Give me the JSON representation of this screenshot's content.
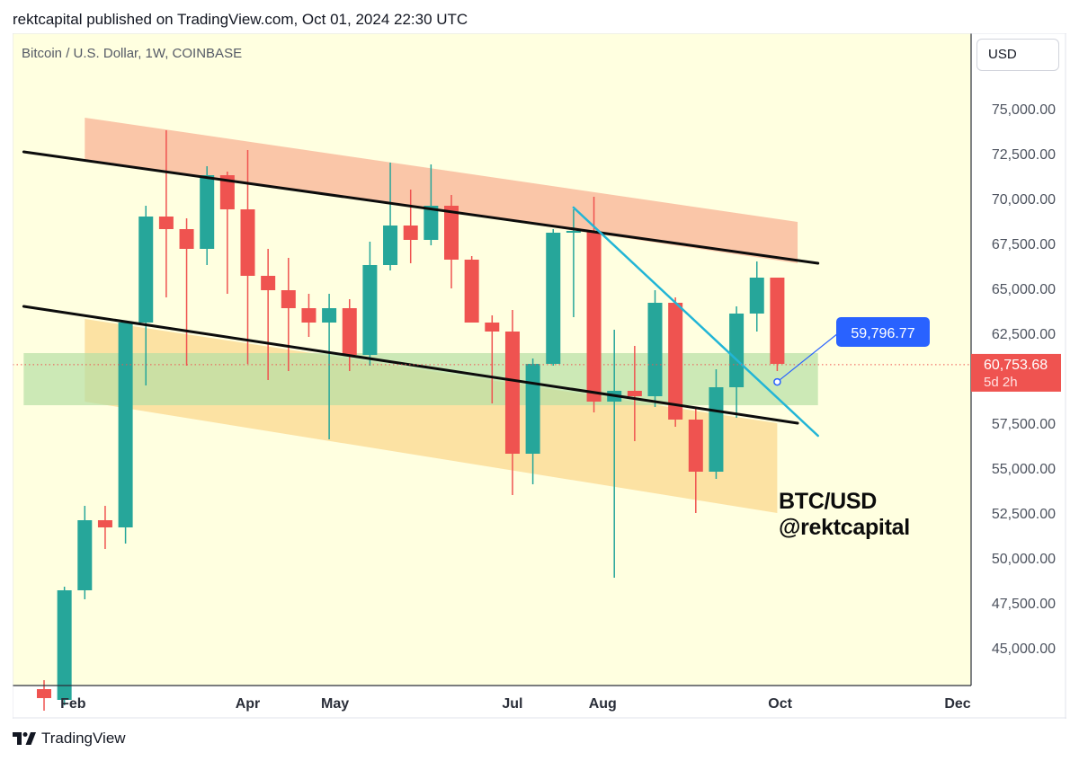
{
  "header": {
    "text": "rektcapital published on TradingView.com, Oct 01, 2024 22:30 UTC"
  },
  "symbol_title": "Bitcoin / U.S. Dollar, 1W, COINBASE",
  "currency": "USD",
  "watermark": {
    "line1": "BTC/USD",
    "line2": "@rektcapital"
  },
  "footer": {
    "brand": "TradingView",
    "logo_icon": "tradingview-logo-icon"
  },
  "colors": {
    "background": "#ffffe0",
    "bull": "#26a69a",
    "bear": "#ef5350",
    "resistance_zone": "#f8a88a",
    "support_zone": "#fbd689",
    "green_zone": "#b6e0a4",
    "trendline": "#0c0c0c",
    "downtrend": "#22b5d6",
    "callout": "#2962ff"
  },
  "chart_data": {
    "type": "candlestick",
    "title": "Bitcoin / U.S. Dollar, 1W, COINBASE",
    "interval": "1W",
    "y_axis": {
      "position": "right",
      "range": [
        42500,
        77500
      ],
      "ticks": [
        "75,000.00",
        "72,500.00",
        "70,000.00",
        "67,500.00",
        "65,000.00",
        "62,500.00",
        "57,500.00",
        "55,000.00",
        "52,500.00",
        "50,000.00",
        "47,500.00",
        "45,000.00"
      ],
      "tick_values": [
        75000,
        72500,
        70000,
        67500,
        65000,
        62500,
        57500,
        55000,
        52500,
        50000,
        47500,
        45000
      ]
    },
    "x_axis": {
      "labels": [
        "Feb",
        "Apr",
        "May",
        "Jul",
        "Aug",
        "Oct",
        "Dec"
      ],
      "label_dates": [
        "2024-02-01",
        "2024-04-01",
        "2024-05-01",
        "2024-07-01",
        "2024-08-01",
        "2024-10-01",
        "2024-12-01"
      ]
    },
    "candles": [
      {
        "date": "2024-01-22",
        "open": 42700,
        "high": 43200,
        "low": 41500,
        "close": 42200
      },
      {
        "date": "2024-01-29",
        "open": 42100,
        "high": 48400,
        "low": 41800,
        "close": 48200
      },
      {
        "date": "2024-02-05",
        "open": 48200,
        "high": 52900,
        "low": 47700,
        "close": 52100
      },
      {
        "date": "2024-02-12",
        "open": 52100,
        "high": 52900,
        "low": 50500,
        "close": 51700
      },
      {
        "date": "2024-02-19",
        "open": 51700,
        "high": 63000,
        "low": 50800,
        "close": 63100
      },
      {
        "date": "2024-02-26",
        "open": 63100,
        "high": 69600,
        "low": 59600,
        "close": 69000
      },
      {
        "date": "2024-03-04",
        "open": 69000,
        "high": 73800,
        "low": 64500,
        "close": 68300
      },
      {
        "date": "2024-03-11",
        "open": 68300,
        "high": 68900,
        "low": 60700,
        "close": 67200
      },
      {
        "date": "2024-03-18",
        "open": 67200,
        "high": 71800,
        "low": 66300,
        "close": 71300
      },
      {
        "date": "2024-03-25",
        "open": 71300,
        "high": 71500,
        "low": 64700,
        "close": 69400
      },
      {
        "date": "2024-04-01",
        "open": 69400,
        "high": 72700,
        "low": 60800,
        "close": 65700
      },
      {
        "date": "2024-04-08",
        "open": 65700,
        "high": 67200,
        "low": 59900,
        "close": 64900
      },
      {
        "date": "2024-04-15",
        "open": 64900,
        "high": 66700,
        "low": 60400,
        "close": 63900
      },
      {
        "date": "2024-04-22",
        "open": 63900,
        "high": 64700,
        "low": 62300,
        "close": 63100
      },
      {
        "date": "2024-04-29",
        "open": 63100,
        "high": 64700,
        "low": 56600,
        "close": 63900
      },
      {
        "date": "2024-05-06",
        "open": 63900,
        "high": 64400,
        "low": 60400,
        "close": 61300
      },
      {
        "date": "2024-05-13",
        "open": 61300,
        "high": 67600,
        "low": 60700,
        "close": 66300
      },
      {
        "date": "2024-05-20",
        "open": 66300,
        "high": 72000,
        "low": 66000,
        "close": 68500
      },
      {
        "date": "2024-05-27",
        "open": 68500,
        "high": 70500,
        "low": 66400,
        "close": 67700
      },
      {
        "date": "2024-06-03",
        "open": 67700,
        "high": 71900,
        "low": 67400,
        "close": 69600
      },
      {
        "date": "2024-06-10",
        "open": 69600,
        "high": 70200,
        "low": 65000,
        "close": 66600
      },
      {
        "date": "2024-06-17",
        "open": 66600,
        "high": 66800,
        "low": 63400,
        "close": 63100
      },
      {
        "date": "2024-06-24",
        "open": 63100,
        "high": 63500,
        "low": 58600,
        "close": 62600
      },
      {
        "date": "2024-07-01",
        "open": 62600,
        "high": 63800,
        "low": 53500,
        "close": 55800
      },
      {
        "date": "2024-07-08",
        "open": 55800,
        "high": 61100,
        "low": 54100,
        "close": 60800
      },
      {
        "date": "2024-07-15",
        "open": 60800,
        "high": 68300,
        "low": 60700,
        "close": 68100
      },
      {
        "date": "2024-07-22",
        "open": 68100,
        "high": 69400,
        "low": 63400,
        "close": 68200
      },
      {
        "date": "2024-07-29",
        "open": 68200,
        "high": 70100,
        "low": 58100,
        "close": 58700
      },
      {
        "date": "2024-08-05",
        "open": 58700,
        "high": 62700,
        "low": 48900,
        "close": 59300
      },
      {
        "date": "2024-08-12",
        "open": 59300,
        "high": 61800,
        "low": 56500,
        "close": 59000
      },
      {
        "date": "2024-08-19",
        "open": 59000,
        "high": 64900,
        "low": 58400,
        "close": 64200
      },
      {
        "date": "2024-08-26",
        "open": 64200,
        "high": 64500,
        "low": 57300,
        "close": 57700
      },
      {
        "date": "2024-09-02",
        "open": 57700,
        "high": 58300,
        "low": 52500,
        "close": 54800
      },
      {
        "date": "2024-09-09",
        "open": 54800,
        "high": 60500,
        "low": 54400,
        "close": 59500
      },
      {
        "date": "2024-09-16",
        "open": 59500,
        "high": 64000,
        "low": 57800,
        "close": 63600
      },
      {
        "date": "2024-09-23",
        "open": 63600,
        "high": 66500,
        "low": 62600,
        "close": 65600
      },
      {
        "date": "2024-09-30",
        "open": 65600,
        "high": 65600,
        "low": 60400,
        "close": 60800
      }
    ],
    "last_price": {
      "value": "60,753.68",
      "countdown": "5d 2h"
    },
    "callout": {
      "label": "59,796.77",
      "value": 59796.77
    },
    "annotations": {
      "upper_trendline": [
        [
          "2024-01-15",
          72600
        ],
        [
          "2024-10-14",
          66400
        ]
      ],
      "lower_trendline": [
        [
          "2024-01-15",
          64000
        ],
        [
          "2024-10-07",
          57500
        ]
      ],
      "resistance_zone": {
        "top": [
          [
            "2024-02-05",
            74500
          ],
          [
            "2024-10-07",
            68700
          ]
        ],
        "bottom": [
          [
            "2024-02-05",
            72200
          ],
          [
            "2024-10-07",
            66400
          ]
        ]
      },
      "support_zone": {
        "top": [
          [
            "2024-02-05",
            63300
          ],
          [
            "2024-09-30",
            57500
          ]
        ],
        "bottom": [
          [
            "2024-02-05",
            58700
          ],
          [
            "2024-09-30",
            52500
          ]
        ]
      },
      "green_zone": {
        "from": "2024-01-15",
        "to": "2024-10-14",
        "top": 61400,
        "bottom": 58500
      },
      "downtrend_line": [
        [
          "2024-07-22",
          69500
        ],
        [
          "2024-10-14",
          56800
        ]
      ]
    }
  }
}
